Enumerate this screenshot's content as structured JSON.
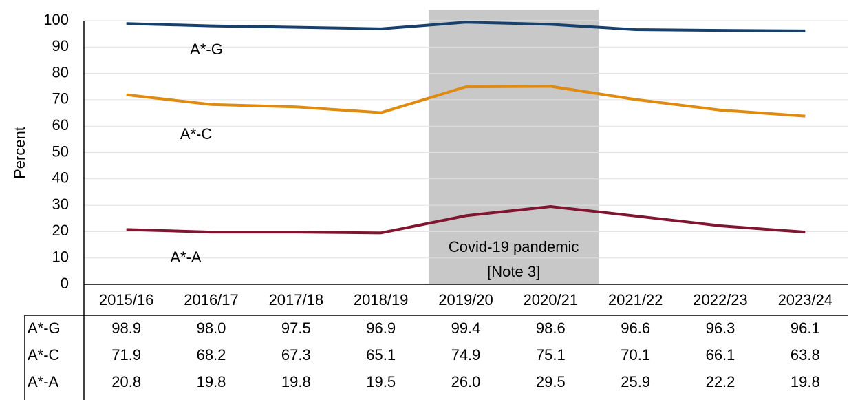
{
  "chart_data": {
    "type": "line",
    "y_label": "Percent",
    "categories": [
      "2015/16",
      "2016/17",
      "2017/18",
      "2018/19",
      "2019/20",
      "2020/21",
      "2021/22",
      "2022/23",
      "2023/24"
    ],
    "series": [
      {
        "name": "A*-G",
        "color": "#17406d",
        "values": [
          98.9,
          98,
          97.5,
          96.9,
          99.4,
          98.6,
          96.6,
          96.3,
          96.1
        ],
        "value_labels": [
          "98.9",
          "98.0",
          "97.5",
          "96.9",
          "99.4",
          "98.6",
          "96.6",
          "96.3",
          "96.1"
        ]
      },
      {
        "name": "A*-C",
        "color": "#e08a10",
        "values": [
          71.9,
          68.2,
          67.3,
          65.1,
          74.9,
          75.1,
          70.1,
          66.1,
          63.8
        ],
        "value_labels": [
          "71.9",
          "68.2",
          "67.3",
          "65.1",
          "74.9",
          "75.1",
          "70.1",
          "66.1",
          "63.8"
        ]
      },
      {
        "name": "A*-A",
        "color": "#7f1530",
        "values": [
          20.8,
          19.8,
          19.8,
          19.5,
          26,
          29.5,
          25.9,
          22.2,
          19.8
        ],
        "value_labels": [
          "20.8",
          "19.8",
          "19.8",
          "19.5",
          "26.0",
          "29.5",
          "25.9",
          "22.2",
          "19.8"
        ]
      }
    ],
    "ylim": [
      0,
      100
    ],
    "yticks": [
      0,
      10,
      20,
      30,
      40,
      50,
      60,
      70,
      80,
      90,
      100
    ],
    "grid": true,
    "shaded_range": [
      "2019/20",
      "2020/21"
    ],
    "annotation": [
      "Covid-19 pandemic",
      "[Note 3]"
    ]
  }
}
